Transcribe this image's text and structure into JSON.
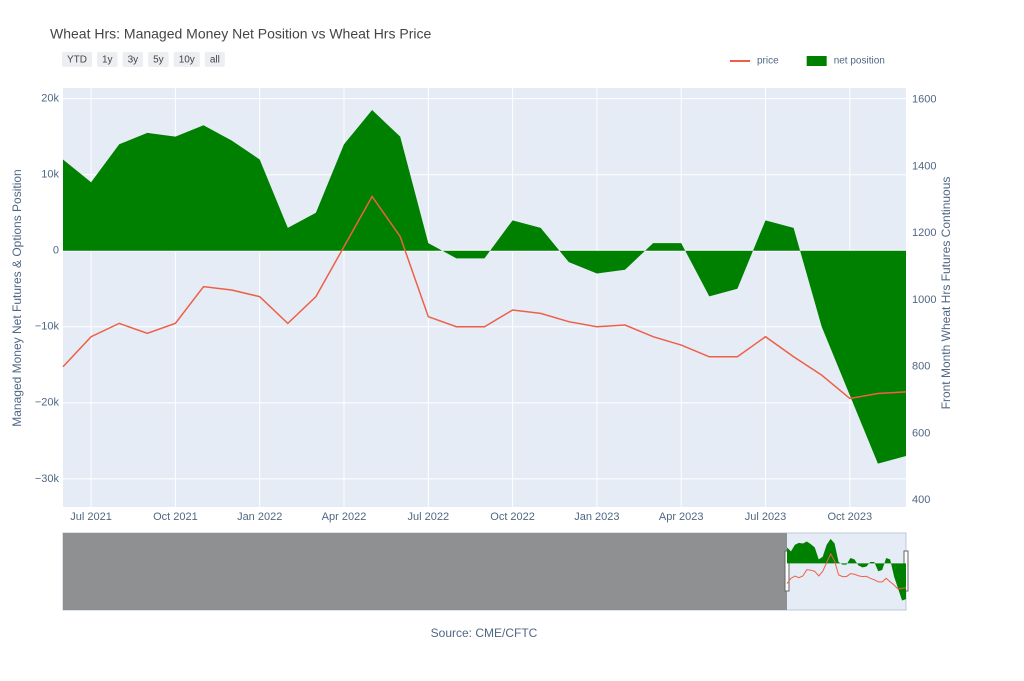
{
  "chart_data": {
    "type": "area-line",
    "title": "Wheat Hrs: Managed Money Net Position vs Wheat Hrs Price",
    "buttons": [
      "YTD",
      "1y",
      "3y",
      "5y",
      "10y",
      "all"
    ],
    "y_label": "Managed Money Net Futures & Options Position",
    "y2_label": "Front Month Wheat Hrs Futures Continuous",
    "source": "Source: CME/CFTC",
    "legend_position": "top-right",
    "grid": true,
    "x": [
      "2021-06",
      "2021-07",
      "2021-08",
      "2021-09",
      "2021-10",
      "2021-11",
      "2021-12",
      "2022-01",
      "2022-02",
      "2022-03",
      "2022-04",
      "2022-05",
      "2022-06",
      "2022-07",
      "2022-08",
      "2022-09",
      "2022-10",
      "2022-11",
      "2022-12",
      "2023-01",
      "2023-02",
      "2023-03",
      "2023-04",
      "2023-05",
      "2023-06",
      "2023-07",
      "2023-08",
      "2023-09",
      "2023-10",
      "2023-11",
      "2023-12"
    ],
    "xlim": [
      "2021-06",
      "2023-12"
    ],
    "xticks": [
      {
        "value": "2021-07",
        "label": "Jul 2021"
      },
      {
        "value": "2021-10",
        "label": "Oct 2021"
      },
      {
        "value": "2022-01",
        "label": "Jan 2022"
      },
      {
        "value": "2022-04",
        "label": "Apr 2022"
      },
      {
        "value": "2022-07",
        "label": "Jul 2022"
      },
      {
        "value": "2022-10",
        "label": "Oct 2022"
      },
      {
        "value": "2023-01",
        "label": "Jan 2023"
      },
      {
        "value": "2023-04",
        "label": "Apr 2023"
      },
      {
        "value": "2023-07",
        "label": "Jul 2023"
      },
      {
        "value": "2023-10",
        "label": "Oct 2023"
      }
    ],
    "ylim": [
      -33700,
      21400
    ],
    "yticks": [
      {
        "value": -30000,
        "label": "−30k"
      },
      {
        "value": -20000,
        "label": "−20k"
      },
      {
        "value": -10000,
        "label": "−10k"
      },
      0,
      {
        "value": 10000,
        "label": "10k"
      },
      {
        "value": 20000,
        "label": "20k"
      }
    ],
    "y2lim": [
      380,
      1635
    ],
    "y2ticks": [
      400,
      600,
      800,
      1000,
      1200,
      1400,
      1600
    ],
    "series": [
      {
        "name": "price",
        "color": "#ef5f47",
        "axis": "y2",
        "values": [
          800,
          890,
          930,
          900,
          930,
          1040,
          1030,
          1010,
          930,
          1010,
          1160,
          1310,
          1190,
          950,
          920,
          920,
          970,
          960,
          935,
          920,
          925,
          890,
          865,
          830,
          830,
          890,
          830,
          775,
          705,
          720,
          725
        ]
      },
      {
        "name": "net position",
        "color": "#008000",
        "values": [
          12000,
          9000,
          14000,
          15500,
          15000,
          16500,
          14500,
          12000,
          3000,
          5000,
          14000,
          18500,
          15000,
          1000,
          -1000,
          -1000,
          4000,
          3000,
          -1500,
          -3000,
          -2500,
          1000,
          1000,
          -6000,
          -5000,
          4000,
          3000,
          -10000,
          -19000,
          -28000,
          -27000
        ]
      }
    ]
  }
}
